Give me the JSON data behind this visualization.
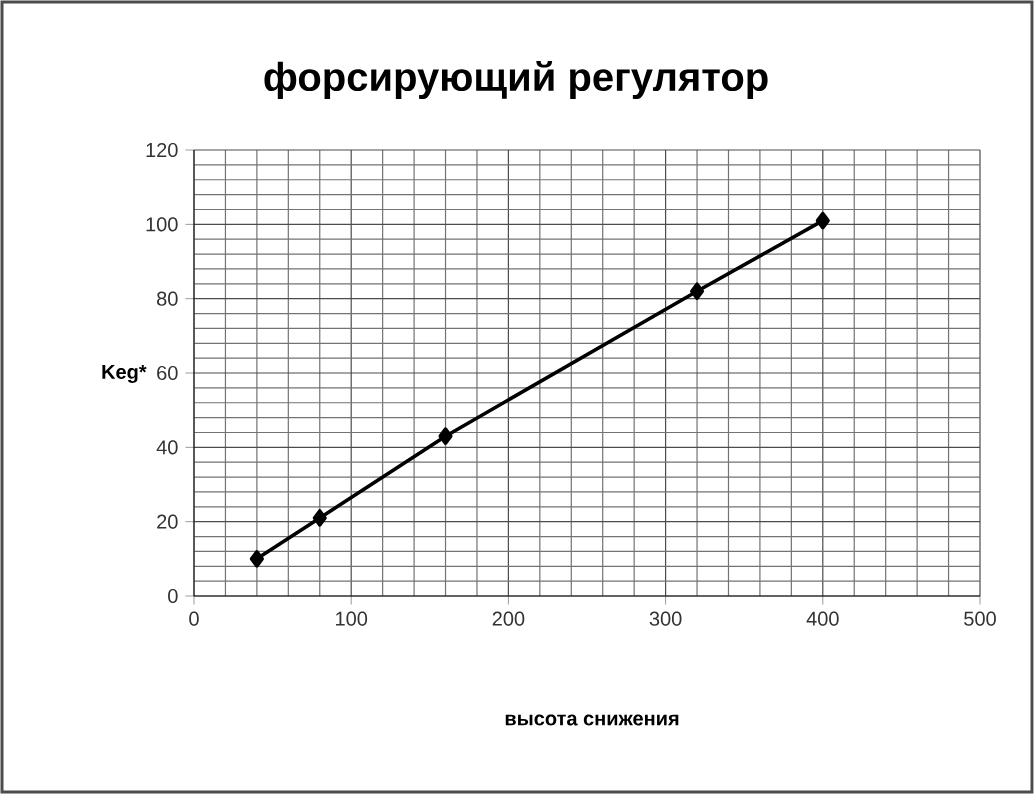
{
  "chart_data": {
    "type": "line",
    "title": "форсирующий регулятор",
    "xlabel": "высота снижения",
    "ylabel": "Keg*",
    "x": [
      40,
      80,
      160,
      320,
      400
    ],
    "series": [
      {
        "color": "#000000",
        "values": [
          10,
          21,
          43,
          82,
          101
        ]
      }
    ],
    "xlim": [
      0,
      500
    ],
    "ylim": [
      0,
      120
    ],
    "xticks": [
      0,
      100,
      200,
      300,
      400,
      500
    ],
    "yticks": [
      0,
      20,
      40,
      60,
      80,
      100,
      120
    ],
    "grid": true,
    "marker": "diamond",
    "line_style": "solid"
  }
}
